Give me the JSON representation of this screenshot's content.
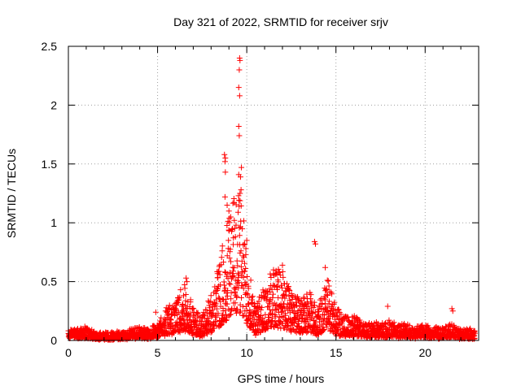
{
  "chart_data": {
    "type": "scatter",
    "title": "Day 321 of 2022, SRMTID for receiver srjv",
    "xlabel": "GPS time / hours",
    "ylabel": "SRMTID / TECUs",
    "xlim": [
      0,
      23
    ],
    "ylim": [
      0,
      2.5
    ],
    "xticks": [
      0,
      5,
      10,
      15,
      20
    ],
    "xtick_labels": [
      "0",
      "5",
      "10",
      "15",
      "20"
    ],
    "yticks": [
      0,
      0.5,
      1,
      1.5,
      2,
      2.5
    ],
    "ytick_labels": [
      "0",
      "0.5",
      "1",
      "1.5",
      "2",
      "2.5"
    ],
    "grid": true,
    "marker": "+",
    "color": "#ff0000",
    "envelope_x": [
      0,
      0.5,
      1,
      1.5,
      2,
      2.5,
      3,
      3.5,
      4,
      4.5,
      5,
      5.5,
      6,
      6.5,
      7,
      7.5,
      8,
      8.5,
      9,
      9.5,
      10,
      10.5,
      11,
      11.5,
      12,
      12.5,
      13,
      13.5,
      14,
      14.5,
      15,
      15.5,
      16,
      16.5,
      17,
      17.5,
      18,
      18.5,
      19,
      19.5,
      20,
      20.5,
      21,
      21.5,
      22,
      22.5,
      22.8
    ],
    "envelope_y": [
      0.06,
      0.07,
      0.08,
      0.05,
      0.05,
      0.05,
      0.06,
      0.07,
      0.08,
      0.07,
      0.1,
      0.2,
      0.25,
      0.35,
      0.2,
      0.15,
      0.3,
      0.5,
      0.8,
      1.0,
      0.6,
      0.2,
      0.35,
      0.45,
      0.45,
      0.3,
      0.25,
      0.3,
      0.2,
      0.4,
      0.2,
      0.15,
      0.15,
      0.12,
      0.1,
      0.12,
      0.12,
      0.1,
      0.1,
      0.08,
      0.1,
      0.08,
      0.08,
      0.1,
      0.07,
      0.07,
      0.06
    ],
    "peaks": [
      {
        "x": 9.6,
        "y": 2.4
      },
      {
        "x": 9.62,
        "y": 2.38
      },
      {
        "x": 9.58,
        "y": 2.3
      },
      {
        "x": 9.55,
        "y": 2.15
      },
      {
        "x": 9.6,
        "y": 2.08
      },
      {
        "x": 9.55,
        "y": 1.82
      },
      {
        "x": 9.58,
        "y": 1.74
      },
      {
        "x": 8.75,
        "y": 1.58
      },
      {
        "x": 8.8,
        "y": 1.55
      },
      {
        "x": 8.78,
        "y": 1.52
      },
      {
        "x": 9.7,
        "y": 1.47
      },
      {
        "x": 8.8,
        "y": 1.43
      },
      {
        "x": 9.55,
        "y": 1.41
      },
      {
        "x": 9.65,
        "y": 1.39
      },
      {
        "x": 9.68,
        "y": 1.28
      },
      {
        "x": 9.62,
        "y": 1.25
      },
      {
        "x": 8.78,
        "y": 1.22
      },
      {
        "x": 8.9,
        "y": 1.15
      },
      {
        "x": 9.0,
        "y": 1.1
      },
      {
        "x": 9.1,
        "y": 1.05
      },
      {
        "x": 9.4,
        "y": 0.98
      },
      {
        "x": 13.8,
        "y": 0.84
      },
      {
        "x": 13.85,
        "y": 0.82
      },
      {
        "x": 14.4,
        "y": 0.62
      },
      {
        "x": 6.6,
        "y": 0.53
      },
      {
        "x": 6.65,
        "y": 0.5
      },
      {
        "x": 4.9,
        "y": 0.24
      },
      {
        "x": 17.9,
        "y": 0.29
      },
      {
        "x": 21.5,
        "y": 0.27
      },
      {
        "x": 21.55,
        "y": 0.25
      },
      {
        "x": 12.0,
        "y": 0.64
      },
      {
        "x": 11.5,
        "y": 0.6
      },
      {
        "x": 10.0,
        "y": 0.85
      },
      {
        "x": 9.95,
        "y": 0.78
      },
      {
        "x": 9.3,
        "y": 1.02
      },
      {
        "x": 9.2,
        "y": 0.95
      }
    ]
  }
}
